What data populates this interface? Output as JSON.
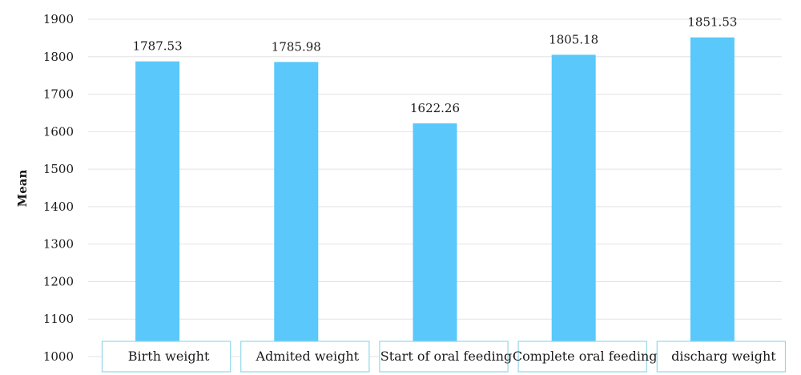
{
  "chart_data": {
    "type": "bar",
    "ylabel": "Mean",
    "ylim": [
      1000,
      1900
    ],
    "yticks": [
      1000,
      1100,
      1200,
      1300,
      1400,
      1500,
      1600,
      1700,
      1800,
      1900
    ],
    "grid": true,
    "categories": [
      "Birth weight",
      "Admited weight",
      "Start of oral feeding",
      "Complete oral feeding",
      "discharg weight"
    ],
    "values": [
      1787.53,
      1785.98,
      1622.26,
      1805.18,
      1851.53
    ],
    "data_labels": [
      "1787.53",
      "1785.98",
      "1622.26",
      "1805.18",
      "1851.53"
    ],
    "bar_color": "#5ac8fa",
    "grid_color": "#e3e3e3",
    "label_box_border_color": "#8fd8e8"
  }
}
